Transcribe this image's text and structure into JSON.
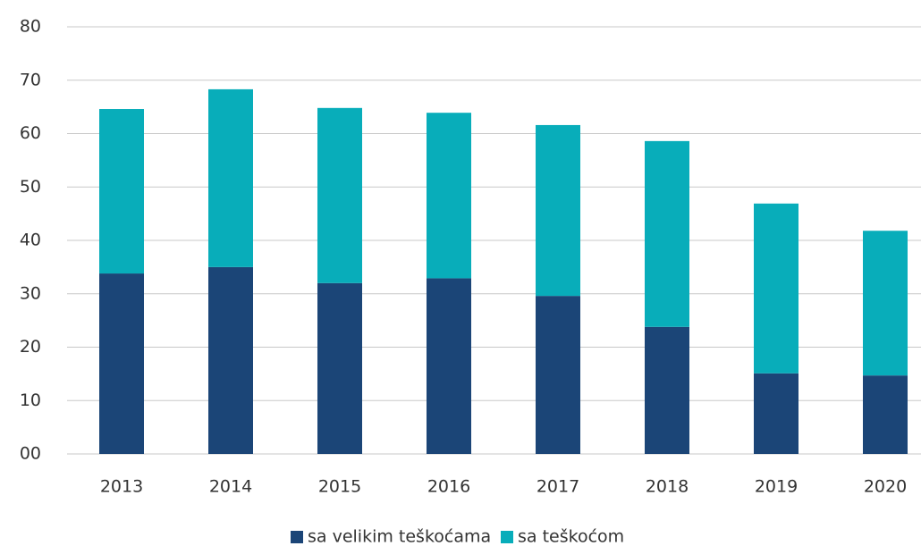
{
  "chart_data": {
    "type": "stacked_bar",
    "categories": [
      "2013",
      "2014",
      "2015",
      "2016",
      "2017",
      "2018",
      "2019",
      "2020"
    ],
    "series": [
      {
        "name": "sa velikim teškoćama",
        "color": "#1b4577",
        "values": [
          33.8,
          35.0,
          32.0,
          32.9,
          29.6,
          23.8,
          15.1,
          14.7
        ]
      },
      {
        "name": "sa teškoćom",
        "color": "#08adba",
        "values": [
          30.8,
          33.3,
          32.8,
          31.0,
          32.0,
          34.8,
          31.8,
          27.1
        ]
      }
    ],
    "ylim": [
      0,
      80
    ],
    "yticks": [
      {
        "value": 0,
        "label": "00"
      },
      10,
      20,
      30,
      40,
      50,
      60,
      70,
      80
    ],
    "grid": true,
    "legend": "bottom"
  }
}
